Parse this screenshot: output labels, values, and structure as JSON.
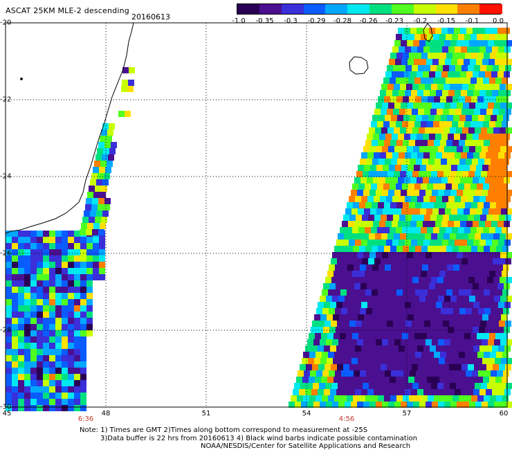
{
  "header": {
    "title": "ASCAT 25KM MLE-2 descending",
    "date": "20160613"
  },
  "colorbar": {
    "labels": [
      "-1.0",
      "-0.35",
      "-0.3",
      "-0.29",
      "-0.28",
      "-0.26",
      "-0.23",
      "-0.2",
      "-0.15",
      "-0.1",
      "0.0"
    ],
    "colors": [
      "#2a0055",
      "#4a1090",
      "#3a2fd8",
      "#0a5cff",
      "#00a8ff",
      "#00e8f0",
      "#00e080",
      "#50ff20",
      "#c8ff00",
      "#ffe000",
      "#ff8000",
      "#ff1000"
    ]
  },
  "axes": {
    "lat_labels": [
      "-20",
      "-22",
      "-24",
      "-26",
      "-28",
      "-30"
    ],
    "lon_labels": [
      "45",
      "48",
      "51",
      "54",
      "57",
      "60"
    ],
    "lat_range": [
      -30,
      -20
    ],
    "lon_range": [
      45,
      60
    ]
  },
  "time_labels": [
    {
      "text": "6:36",
      "lon": 47.4
    },
    {
      "text": "4:56",
      "lon": 55.2
    }
  ],
  "notes": {
    "line1": "Note: 1) Times are GMT 2)Times along bottom correspond to measurement at -25S",
    "line2": "3)Data buffer is 22 hrs from 20160613 4) Black wind barbs indicate possible contamination",
    "line3": "NOAA/NESDIS/Center for Satellite Applications and Research"
  }
}
